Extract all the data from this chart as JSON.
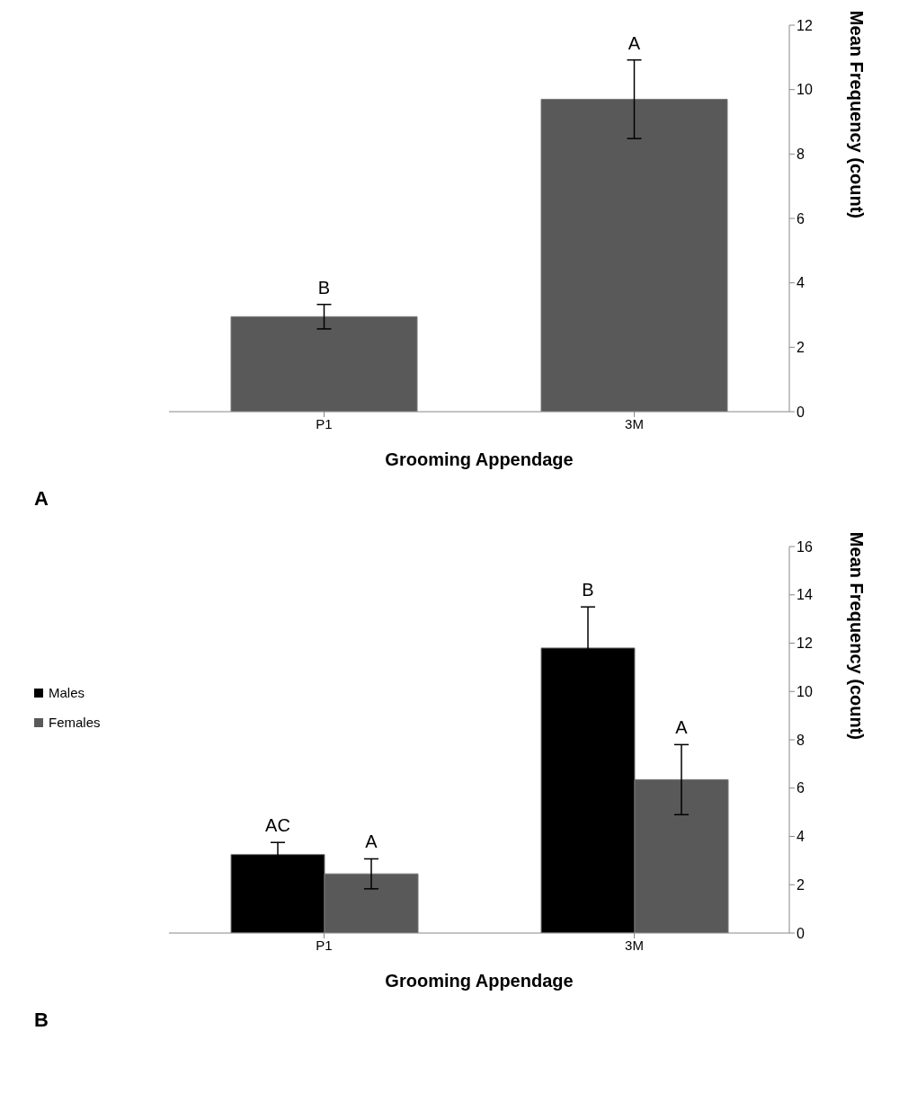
{
  "chart_data": [
    {
      "type": "bar",
      "xlabel": "Grooming Appendage",
      "ylabel": "Mean Frequency (count)",
      "categories": [
        "P1",
        "3M"
      ],
      "values": [
        2.95,
        9.7
      ],
      "errors": [
        0.38,
        1.22
      ],
      "value_labels": [
        "B",
        "A"
      ],
      "color": "#595959",
      "ylim": [
        0,
        12
      ],
      "yticks": [
        0,
        2,
        4,
        6,
        8,
        10,
        12
      ],
      "grid": false,
      "legend": false,
      "annotations": [
        "A"
      ]
    },
    {
      "type": "bar",
      "xlabel": "Grooming Appendage",
      "ylabel": "Mean Frequency (count)",
      "categories": [
        "P1",
        "3M"
      ],
      "series": [
        {
          "name": "Males",
          "color": "#000000",
          "values": [
            3.25,
            11.8
          ],
          "errors": [
            0.5,
            1.7
          ],
          "value_labels": [
            "AC",
            "B"
          ]
        },
        {
          "name": "Females",
          "color": "#595959",
          "values": [
            2.45,
            6.35
          ],
          "errors": [
            0.62,
            1.45
          ],
          "value_labels": [
            "A",
            "A"
          ]
        }
      ],
      "ylim": [
        0,
        16
      ],
      "yticks": [
        0,
        2,
        4,
        6,
        8,
        10,
        12,
        14,
        16
      ],
      "grid": false,
      "legend": "left",
      "annotations": [
        "B"
      ]
    }
  ]
}
